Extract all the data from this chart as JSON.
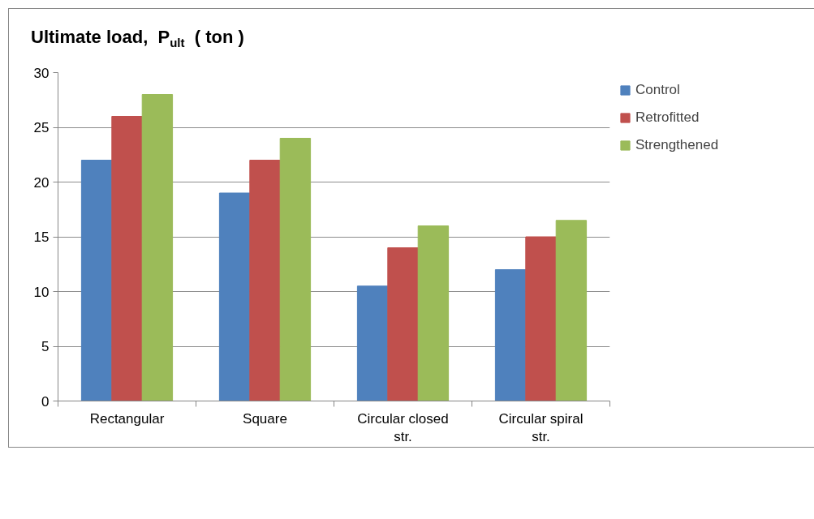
{
  "chart_data": {
    "type": "bar",
    "title": "Ultimate load,  P$_{ult}$  ( ton )",
    "categories": [
      "Rectangular",
      "Square",
      "Circular closed str.",
      "Circular spiral str."
    ],
    "series": [
      {
        "name": "Control",
        "color": "#4f81bd",
        "values": [
          22,
          19,
          10.5,
          12
        ]
      },
      {
        "name": "Retrofitted",
        "color": "#c0504d",
        "values": [
          26,
          22,
          14,
          15
        ]
      },
      {
        "name": "Strengthened",
        "color": "#9bbb59",
        "values": [
          28,
          24,
          16,
          16.5
        ]
      }
    ],
    "ylim": [
      0,
      30
    ],
    "yticks": [
      0,
      5,
      10,
      15,
      20,
      25,
      30
    ],
    "grid": "y",
    "legend": "right"
  }
}
